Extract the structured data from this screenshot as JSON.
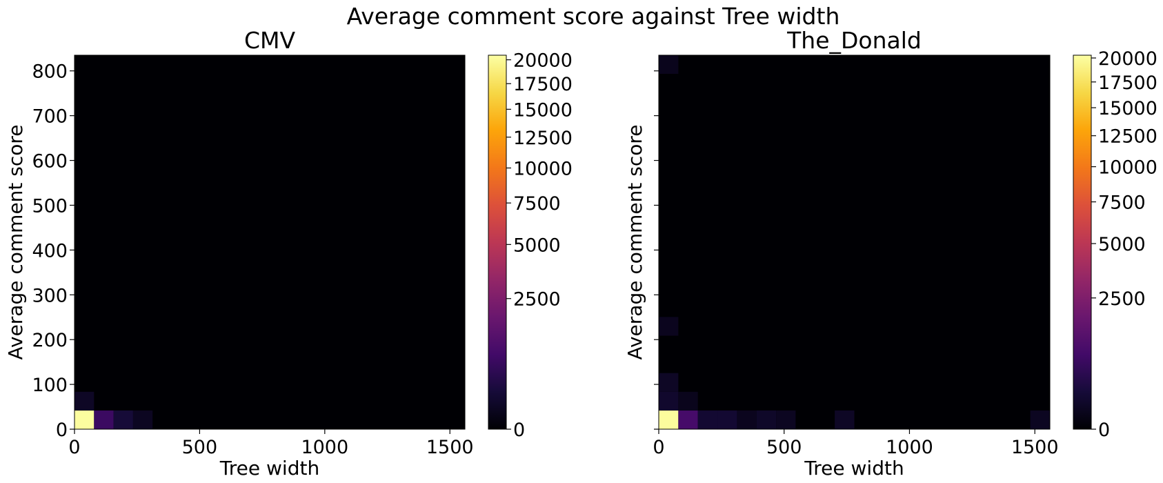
{
  "figure": {
    "title": "Average comment score against Tree width"
  },
  "chart_data": [
    {
      "type": "heatmap",
      "title": "CMV",
      "xlabel": "Tree width",
      "ylabel": "Average comment score",
      "xlim": [
        0,
        1560
      ],
      "ylim": [
        0,
        835
      ],
      "x_ticks": [
        0,
        500,
        1000,
        1500
      ],
      "y_ticks": [
        0,
        100,
        200,
        300,
        400,
        500,
        600,
        700,
        800
      ],
      "x_bin_edges": [
        0,
        78,
        156,
        234,
        312,
        390,
        468,
        546,
        624,
        702,
        780,
        858,
        936,
        1014,
        1092,
        1170,
        1248,
        1326,
        1404,
        1482,
        1560
      ],
      "y_bin_edges": [
        0,
        41.75,
        83.5,
        125.25,
        167,
        208.75,
        250.5,
        292.25,
        334,
        375.75,
        417.5,
        459.25,
        501,
        542.75,
        584.5,
        626.25,
        668,
        709.75,
        751.5,
        793.25,
        835
      ],
      "colormap": "inferno",
      "colorbar_ticks": [
        0,
        2500,
        5000,
        7500,
        10000,
        12500,
        15000,
        17500,
        20000
      ],
      "colorbar_max": 20500,
      "cells": [
        {
          "x_bin": 0,
          "y_bin": 0,
          "count": 20300
        },
        {
          "x_bin": 1,
          "y_bin": 0,
          "count": 700
        },
        {
          "x_bin": 2,
          "y_bin": 0,
          "count": 200
        },
        {
          "x_bin": 3,
          "y_bin": 0,
          "count": 60
        },
        {
          "x_bin": 0,
          "y_bin": 1,
          "count": 80
        }
      ]
    },
    {
      "type": "heatmap",
      "title": "The_Donald",
      "xlabel": "Tree width",
      "ylabel": "Average comment score",
      "xlim": [
        0,
        1560
      ],
      "ylim": [
        0,
        835
      ],
      "x_ticks": [
        0,
        500,
        1000,
        1500
      ],
      "y_ticks": [
        0,
        100,
        200,
        300,
        400,
        500,
        600,
        700,
        800
      ],
      "x_bin_edges": [
        0,
        78,
        156,
        234,
        312,
        390,
        468,
        546,
        624,
        702,
        780,
        858,
        936,
        1014,
        1092,
        1170,
        1248,
        1326,
        1404,
        1482,
        1560
      ],
      "y_bin_edges": [
        0,
        41.75,
        83.5,
        125.25,
        167,
        208.75,
        250.5,
        292.25,
        334,
        375.75,
        417.5,
        459.25,
        501,
        542.75,
        584.5,
        626.25,
        668,
        709.75,
        751.5,
        793.25,
        835
      ],
      "colormap": "inferno",
      "colorbar_ticks": [
        0,
        2500,
        5000,
        7500,
        10000,
        12500,
        15000,
        17500,
        20000
      ],
      "colorbar_max": 20300,
      "cells": [
        {
          "x_bin": 0,
          "y_bin": 0,
          "count": 20000
        },
        {
          "x_bin": 1,
          "y_bin": 0,
          "count": 900
        },
        {
          "x_bin": 2,
          "y_bin": 0,
          "count": 150
        },
        {
          "x_bin": 3,
          "y_bin": 0,
          "count": 150
        },
        {
          "x_bin": 4,
          "y_bin": 0,
          "count": 50
        },
        {
          "x_bin": 5,
          "y_bin": 0,
          "count": 100
        },
        {
          "x_bin": 6,
          "y_bin": 0,
          "count": 60
        },
        {
          "x_bin": 9,
          "y_bin": 0,
          "count": 80
        },
        {
          "x_bin": 19,
          "y_bin": 0,
          "count": 60
        },
        {
          "x_bin": 0,
          "y_bin": 1,
          "count": 120
        },
        {
          "x_bin": 1,
          "y_bin": 1,
          "count": 40
        },
        {
          "x_bin": 0,
          "y_bin": 2,
          "count": 80
        },
        {
          "x_bin": 0,
          "y_bin": 5,
          "count": 50
        },
        {
          "x_bin": 0,
          "y_bin": 19,
          "count": 40
        }
      ]
    }
  ]
}
